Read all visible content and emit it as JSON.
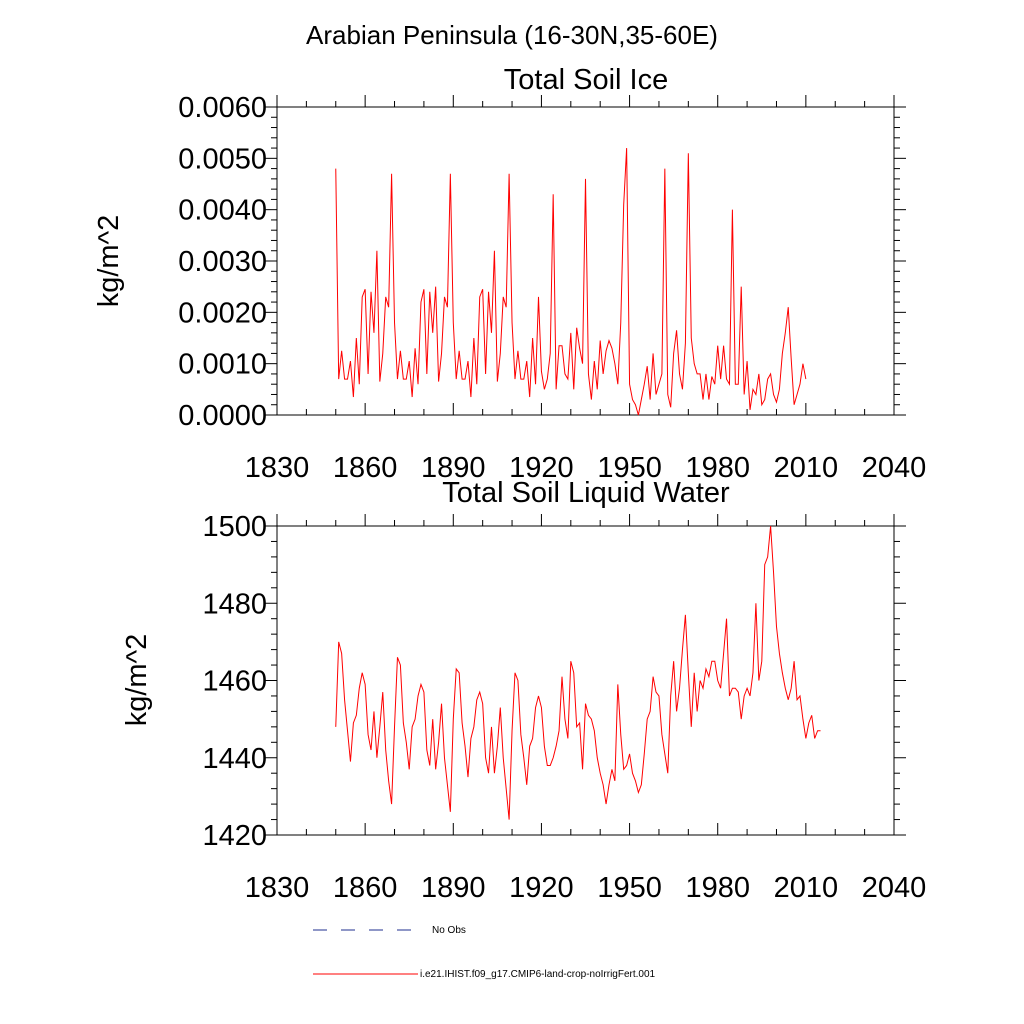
{
  "figure": {
    "suptitle": "Arabian Peninsula (16-30N,35-60E)"
  },
  "legend": {
    "placement": "bottom",
    "entries": [
      {
        "label": "No Obs",
        "color": "#1f2f8f",
        "style": "dashed"
      },
      {
        "label": "i.e21.IHIST.f09_g17.CMIP6-land-crop-noIrrigFert.001",
        "color": "#ff0000",
        "style": "solid"
      }
    ]
  },
  "chart_data": [
    {
      "type": "line",
      "title": "Total Soil Ice",
      "xlabel": "",
      "ylabel": "kg/m^2",
      "xlim": [
        1830,
        2040
      ],
      "ylim": [
        0.0,
        0.006
      ],
      "grid": false,
      "xticks": [
        1830,
        1860,
        1890,
        1920,
        1950,
        1980,
        2010,
        2040
      ],
      "xtick_labels": [
        "1830",
        "1860",
        "1890",
        "1920",
        "1950",
        "1980",
        "2010",
        "2040"
      ],
      "yticks": [
        0.0,
        0.001,
        0.002,
        0.003,
        0.004,
        0.005,
        0.006
      ],
      "ytick_labels": [
        "0.0000",
        "0.0010",
        "0.0020",
        "0.0030",
        "0.0040",
        "0.0050",
        "0.0060"
      ],
      "series": [
        {
          "name": "i.e21.IHIST.f09_g17.CMIP6-land-crop-noIrrigFert.001",
          "color": "#ff0000",
          "x_start": 1850,
          "x_step": 1,
          "values": [
            0.0048,
            0.0007,
            0.00125,
            0.0007,
            0.0007,
            0.00105,
            0.00035,
            0.0015,
            0.0006,
            0.0023,
            0.00245,
            0.0008,
            0.0024,
            0.0016,
            0.0032,
            0.00065,
            0.0012,
            0.0023,
            0.0021,
            0.0047,
            0.0018,
            0.0007,
            0.00125,
            0.0007,
            0.0007,
            0.00105,
            0.00035,
            0.0013,
            0.0006,
            0.0022,
            0.00245,
            0.0008,
            0.0024,
            0.0016,
            0.0025,
            0.00065,
            0.0012,
            0.0023,
            0.0021,
            0.0047,
            0.0018,
            0.0007,
            0.00125,
            0.0007,
            0.0007,
            0.00105,
            0.00035,
            0.0015,
            0.0006,
            0.0023,
            0.00245,
            0.0008,
            0.0024,
            0.0016,
            0.0032,
            0.00065,
            0.0012,
            0.0023,
            0.0021,
            0.0047,
            0.0018,
            0.0007,
            0.00125,
            0.0007,
            0.0007,
            0.00105,
            0.00035,
            0.0015,
            0.0006,
            0.0023,
            0.00085,
            0.0005,
            0.0007,
            0.0012,
            0.0043,
            0.0005,
            0.00135,
            0.00135,
            0.0008,
            0.0007,
            0.0016,
            0.0005,
            0.0017,
            0.0013,
            0.001,
            0.0046,
            0.0008,
            0.0003,
            0.00105,
            0.0005,
            0.00145,
            0.0008,
            0.00125,
            0.00145,
            0.0013,
            0.001,
            0.0006,
            0.0018,
            0.0041,
            0.0052,
            0.0006,
            0.0003,
            0.0002,
            0.0,
            0.0003,
            0.0006,
            0.00095,
            0.0003,
            0.0012,
            0.0004,
            0.0006,
            0.0008,
            0.0048,
            0.0004,
            0.00015,
            0.0012,
            0.00165,
            0.0008,
            0.0005,
            0.0014,
            0.0051,
            0.0015,
            0.001,
            0.0008,
            0.0008,
            0.0003,
            0.0008,
            0.0003,
            0.00075,
            0.0006,
            0.00135,
            0.0007,
            0.00135,
            0.0007,
            0.0006,
            0.004,
            0.0006,
            0.0006,
            0.0025,
            0.0004,
            0.00105,
            0.0001,
            0.0005,
            0.0004,
            0.0008,
            0.0002,
            0.0003,
            0.0007,
            0.0008,
            0.0004,
            0.00025,
            0.0005,
            0.0012,
            0.0016,
            0.0021,
            0.0011,
            0.0002,
            0.0004,
            0.0006,
            0.001,
            0.0007
          ]
        }
      ]
    },
    {
      "type": "line",
      "title": "Total Soil Liquid Water",
      "xlabel": "",
      "ylabel": "kg/m^2",
      "xlim": [
        1830,
        2040
      ],
      "ylim": [
        1420,
        1500
      ],
      "grid": false,
      "xticks": [
        1830,
        1860,
        1890,
        1920,
        1950,
        1980,
        2010,
        2040
      ],
      "xtick_labels": [
        "1830",
        "1860",
        "1890",
        "1920",
        "1950",
        "1980",
        "2010",
        "2040"
      ],
      "yticks": [
        1420,
        1440,
        1460,
        1480,
        1500
      ],
      "ytick_labels": [
        "1420",
        "1440",
        "1460",
        "1480",
        "1500"
      ],
      "series": [
        {
          "name": "i.e21.IHIST.f09_g17.CMIP6-land-crop-noIrrigFert.001",
          "color": "#ff0000",
          "x_start": 1850,
          "x_step": 1,
          "values": [
            1448,
            1470,
            1467,
            1455,
            1447,
            1439,
            1449,
            1451,
            1458,
            1462,
            1459,
            1446,
            1442,
            1452,
            1440,
            1448,
            1457,
            1442,
            1434,
            1428,
            1448,
            1466,
            1464,
            1449,
            1444,
            1437,
            1448,
            1450,
            1456,
            1459,
            1457,
            1442,
            1438,
            1450,
            1437,
            1444,
            1454,
            1440,
            1433,
            1426,
            1450,
            1463,
            1462,
            1449,
            1443,
            1435,
            1445,
            1448,
            1455,
            1457,
            1454,
            1440,
            1436,
            1448,
            1436,
            1443,
            1453,
            1440,
            1432,
            1424,
            1447,
            1462,
            1460,
            1446,
            1440,
            1433,
            1443,
            1445,
            1453,
            1456,
            1453,
            1443,
            1438,
            1438,
            1440,
            1443,
            1447,
            1461,
            1450,
            1445,
            1465,
            1462,
            1448,
            1449,
            1437,
            1454,
            1451,
            1450,
            1447,
            1440,
            1436,
            1433,
            1428,
            1433,
            1437,
            1434,
            1459,
            1446,
            1437,
            1438,
            1441,
            1436,
            1434,
            1431,
            1433,
            1441,
            1450,
            1452,
            1461,
            1457,
            1456,
            1446,
            1441,
            1436,
            1456,
            1465,
            1452,
            1458,
            1468,
            1477,
            1462,
            1448,
            1462,
            1452,
            1460,
            1458,
            1463,
            1461,
            1465,
            1465,
            1460,
            1458,
            1467,
            1476,
            1456,
            1458,
            1458,
            1457,
            1450,
            1456,
            1458,
            1456,
            1462,
            1480,
            1460,
            1465,
            1490,
            1492,
            1500,
            1488,
            1474,
            1467,
            1462,
            1458,
            1455,
            1458,
            1465,
            1455,
            1456,
            1450,
            1445,
            1449,
            1451,
            1445,
            1447,
            1447
          ]
        }
      ]
    }
  ]
}
